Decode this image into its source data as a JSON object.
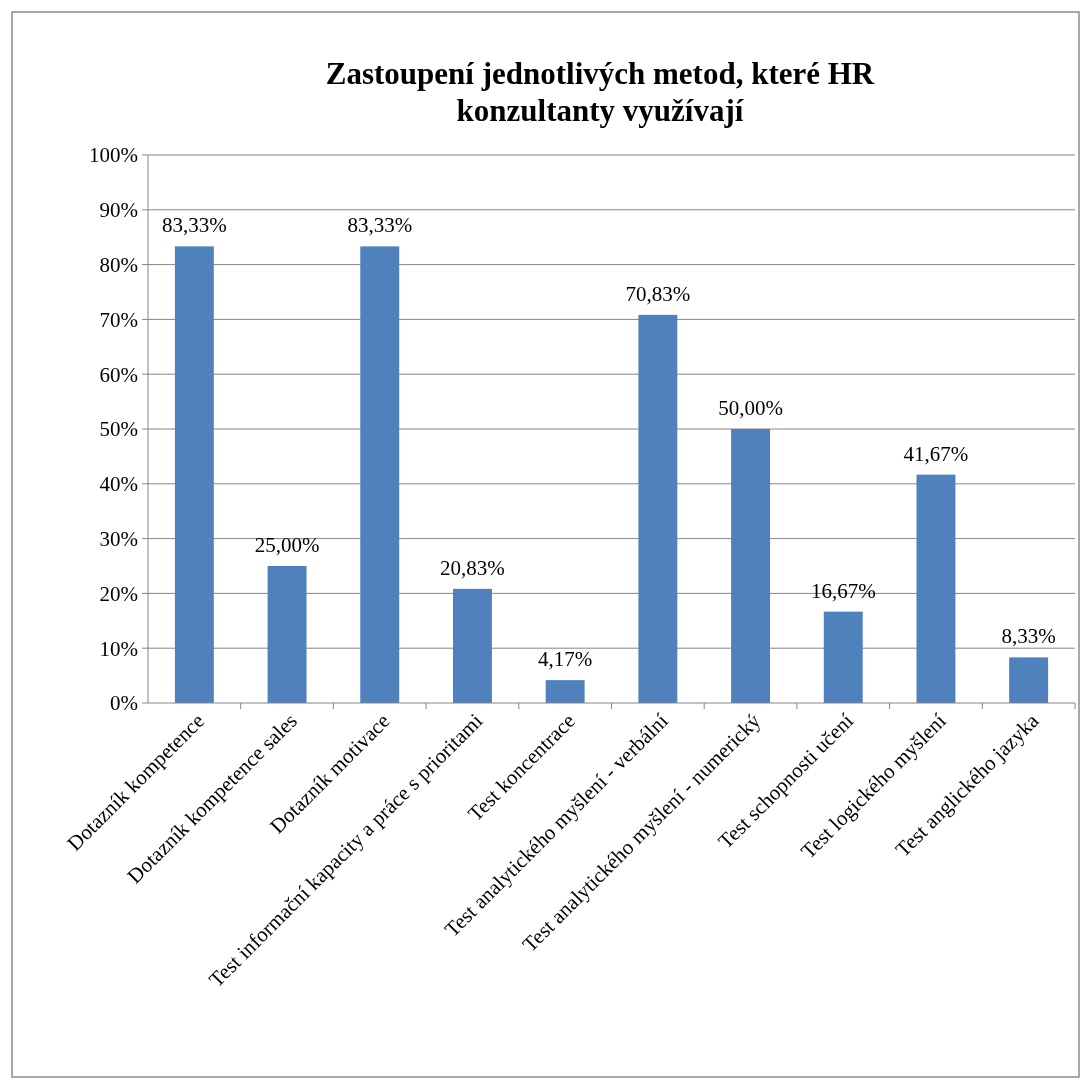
{
  "chart_data": {
    "type": "bar",
    "title": "Zastoupení jednotlivých metod, které HR konzultanty využívají",
    "categories": [
      "Dotazník kompetence",
      "Dotazník kompetence sales",
      "Dotazník motivace",
      "Test informační kapacity a práce s prioritami",
      "Test koncentrace",
      "Test analytického myšlení - verbální",
      "Test analytického myšlení - numerický",
      "Test schopnosti učení",
      "Test logického myšlení",
      "Test anglického jazyka"
    ],
    "values": [
      83.33,
      25.0,
      83.33,
      20.83,
      4.17,
      70.83,
      50.0,
      16.67,
      41.67,
      8.33
    ],
    "value_labels": [
      "83,33%",
      "25,00%",
      "83,33%",
      "20,83%",
      "4,17%",
      "70,83%",
      "50,00%",
      "16,67%",
      "41,67%",
      "8,33%"
    ],
    "color": "#4f81bd",
    "ylim": [
      0,
      100
    ],
    "yticks": [
      {
        "value": 0,
        "label": "0%"
      },
      {
        "value": 10,
        "label": "10%"
      },
      {
        "value": 20,
        "label": "20%"
      },
      {
        "value": 30,
        "label": "30%"
      },
      {
        "value": 40,
        "label": "40%"
      },
      {
        "value": 50,
        "label": "50%"
      },
      {
        "value": 60,
        "label": "60%"
      },
      {
        "value": 70,
        "label": "70%"
      },
      {
        "value": 80,
        "label": "80%"
      },
      {
        "value": 90,
        "label": "90%"
      },
      {
        "value": 100,
        "label": "100%"
      }
    ],
    "grid": "y"
  }
}
